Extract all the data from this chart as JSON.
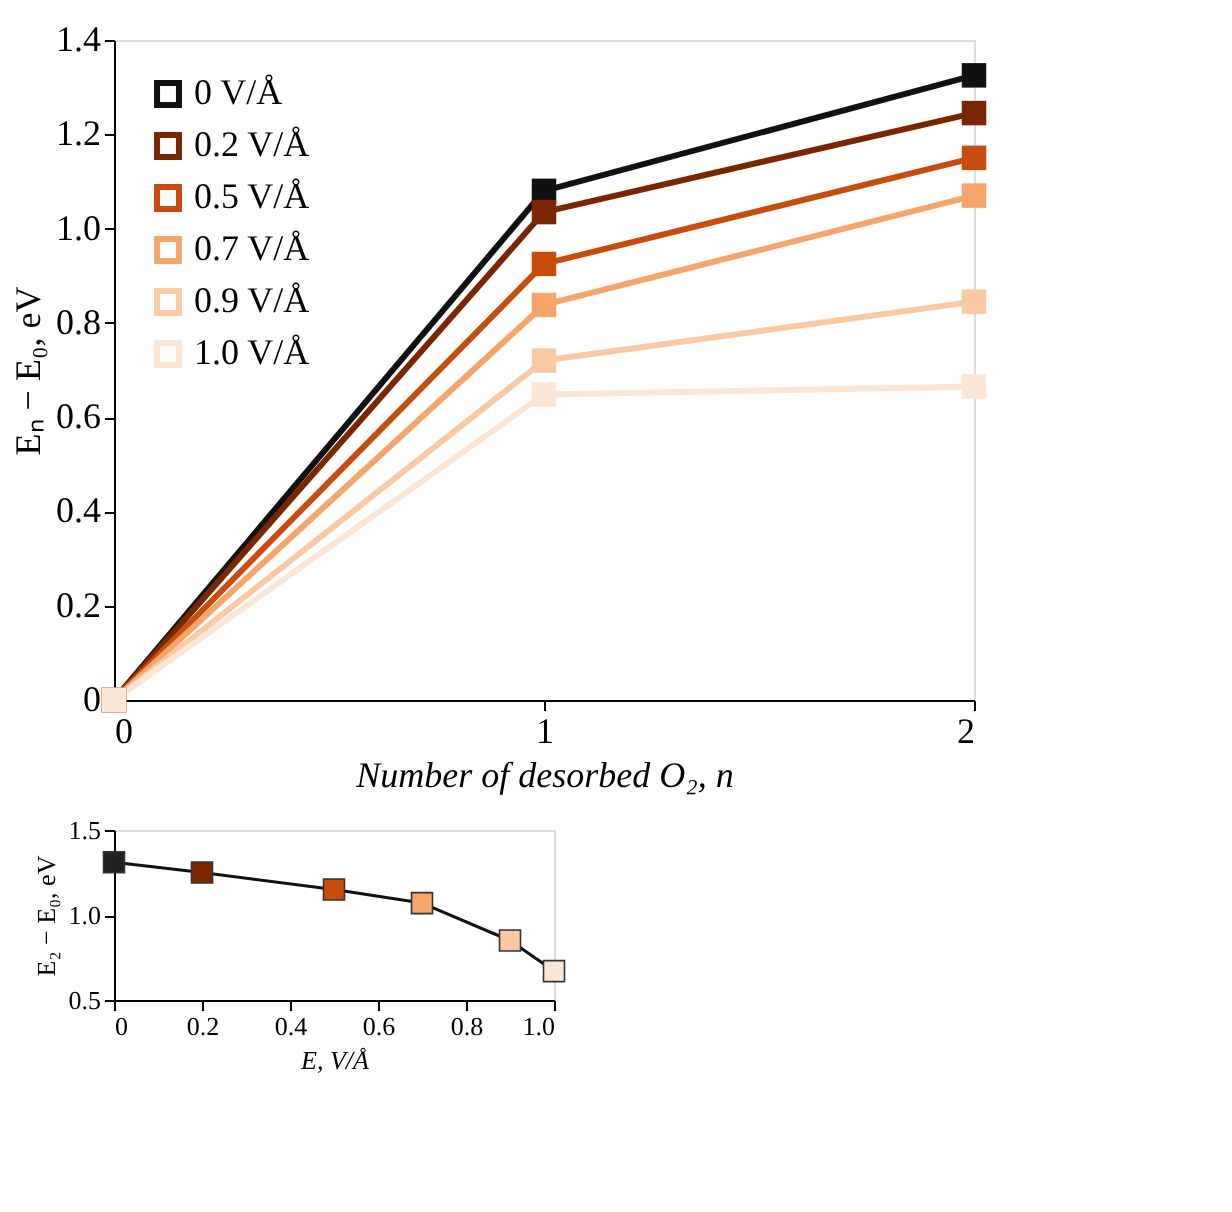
{
  "chart_data": [
    {
      "type": "line",
      "xlabel": "Number of desorbed O₂, n",
      "ylabel": "Eₙ − E₀, eV",
      "x": [
        0,
        1,
        2
      ],
      "xlim": [
        0,
        2
      ],
      "xticks": [
        0,
        1,
        2
      ],
      "ylim": [
        0,
        1.4
      ],
      "yticks": [
        0,
        {
          "value": 0.2,
          "label": "0.2"
        },
        {
          "value": 0.4,
          "label": "0.4"
        },
        {
          "value": 0.6,
          "label": "0.6"
        },
        {
          "value": 0.8,
          "label": "0.8"
        },
        {
          "value": 1.0,
          "label": "1.0"
        },
        {
          "value": 1.2,
          "label": "1.2"
        },
        {
          "value": 1.4,
          "label": "1.4"
        }
      ],
      "marker": "square",
      "line_style": "solid",
      "grid": false,
      "legend": "top left",
      "series": [
        {
          "name": "0 V/Å",
          "color": "#111111",
          "values": [
            0,
            1.08,
            1.325
          ]
        },
        {
          "name": "0.2 V/Å",
          "color": "#7a2600",
          "values": [
            0,
            1.035,
            1.245
          ]
        },
        {
          "name": "0.5 V/Å",
          "color": "#c84c0c",
          "values": [
            0,
            0.925,
            1.15
          ]
        },
        {
          "name": "0.7 V/Å",
          "color": "#f5a46a",
          "values": [
            0,
            0.838,
            1.07
          ]
        },
        {
          "name": "0.9 V/Å",
          "color": "#f9c9a3",
          "values": [
            0,
            0.72,
            0.845
          ]
        },
        {
          "name": "1.0 V/Å",
          "color": "#fce6d6",
          "values": [
            0,
            0.648,
            0.665
          ]
        }
      ]
    },
    {
      "type": "line",
      "xlabel": "E, V/Å",
      "ylabel": "E₂ − E₀, eV",
      "x": [
        0,
        0.2,
        0.5,
        0.7,
        0.9,
        1.0
      ],
      "xlim": [
        0,
        1
      ],
      "xticks": [
        0,
        {
          "value": 0.2,
          "label": "0.2"
        },
        {
          "value": 0.4,
          "label": "0.4"
        },
        {
          "value": 0.6,
          "label": "0.6"
        },
        {
          "value": 0.8,
          "label": "0.8"
        },
        {
          "value": 1.0,
          "label": "1.0"
        }
      ],
      "ylim": [
        0.5,
        1.5
      ],
      "yticks": [
        {
          "value": 0.5,
          "label": "0.5"
        },
        {
          "value": 1.0,
          "label": "1.0"
        },
        {
          "value": 1.5,
          "label": "1.5"
        }
      ],
      "marker": "square",
      "line_style": "solid",
      "grid": false,
      "legend": false,
      "series": [
        {
          "color": "#111111",
          "values": [
            1.31,
            1.25,
            1.15,
            1.07,
            0.85,
            0.67
          ],
          "colors": [
            "#222222",
            "#7a2600",
            "#c84c0c",
            "#f5a46a",
            "#f9c9a3",
            "#fce6d6"
          ]
        }
      ]
    }
  ]
}
